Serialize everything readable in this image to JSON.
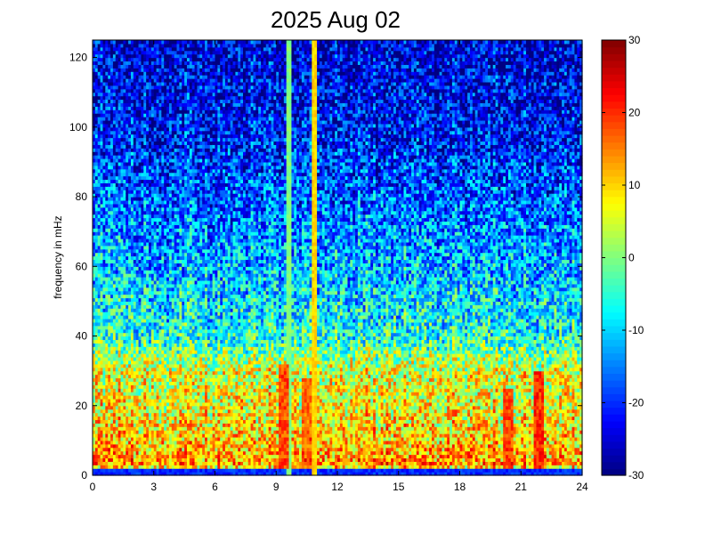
{
  "chart_data": {
    "type": "heatmap",
    "title": "2025 Aug 02",
    "xlabel": "",
    "ylabel": "frequency in mHz",
    "xlim": [
      0,
      24
    ],
    "ylim": [
      0,
      125
    ],
    "x_ticks": [
      0,
      3,
      6,
      9,
      12,
      15,
      18,
      21,
      24
    ],
    "y_ticks": [
      0,
      20,
      40,
      60,
      80,
      100,
      120
    ],
    "colorbar": {
      "colormap": "jet",
      "range": [
        -30,
        30
      ],
      "ticks": [
        30,
        20,
        10,
        0,
        -10,
        -20,
        -30
      ]
    },
    "grid_hours": 192,
    "grid_freq_bins": 125,
    "approx_level_db_by_frequency": [
      {
        "freq_mhz": 0,
        "level_db": -18
      },
      {
        "freq_mhz": 3,
        "level_db": 14
      },
      {
        "freq_mhz": 10,
        "level_db": 10
      },
      {
        "freq_mhz": 20,
        "level_db": 7
      },
      {
        "freq_mhz": 30,
        "level_db": 6
      },
      {
        "freq_mhz": 40,
        "level_db": -6
      },
      {
        "freq_mhz": 60,
        "level_db": -12
      },
      {
        "freq_mhz": 80,
        "level_db": -17
      },
      {
        "freq_mhz": 100,
        "level_db": -22
      },
      {
        "freq_mhz": 125,
        "level_db": -25
      }
    ],
    "features": [
      {
        "type": "vertical_stripe",
        "hour": 9.65,
        "level_db": 0
      },
      {
        "type": "vertical_stripe",
        "hour": 10.85,
        "level_db": 10
      },
      {
        "type": "burst",
        "hour": 9.4,
        "max_freq_mhz": 32,
        "level_db": 18
      },
      {
        "type": "burst",
        "hour": 10.5,
        "max_freq_mhz": 28,
        "level_db": 16
      },
      {
        "type": "burst",
        "hour": 20.4,
        "max_freq_mhz": 25,
        "level_db": 18
      },
      {
        "type": "burst",
        "hour": 21.9,
        "max_freq_mhz": 30,
        "level_db": 20
      }
    ]
  }
}
